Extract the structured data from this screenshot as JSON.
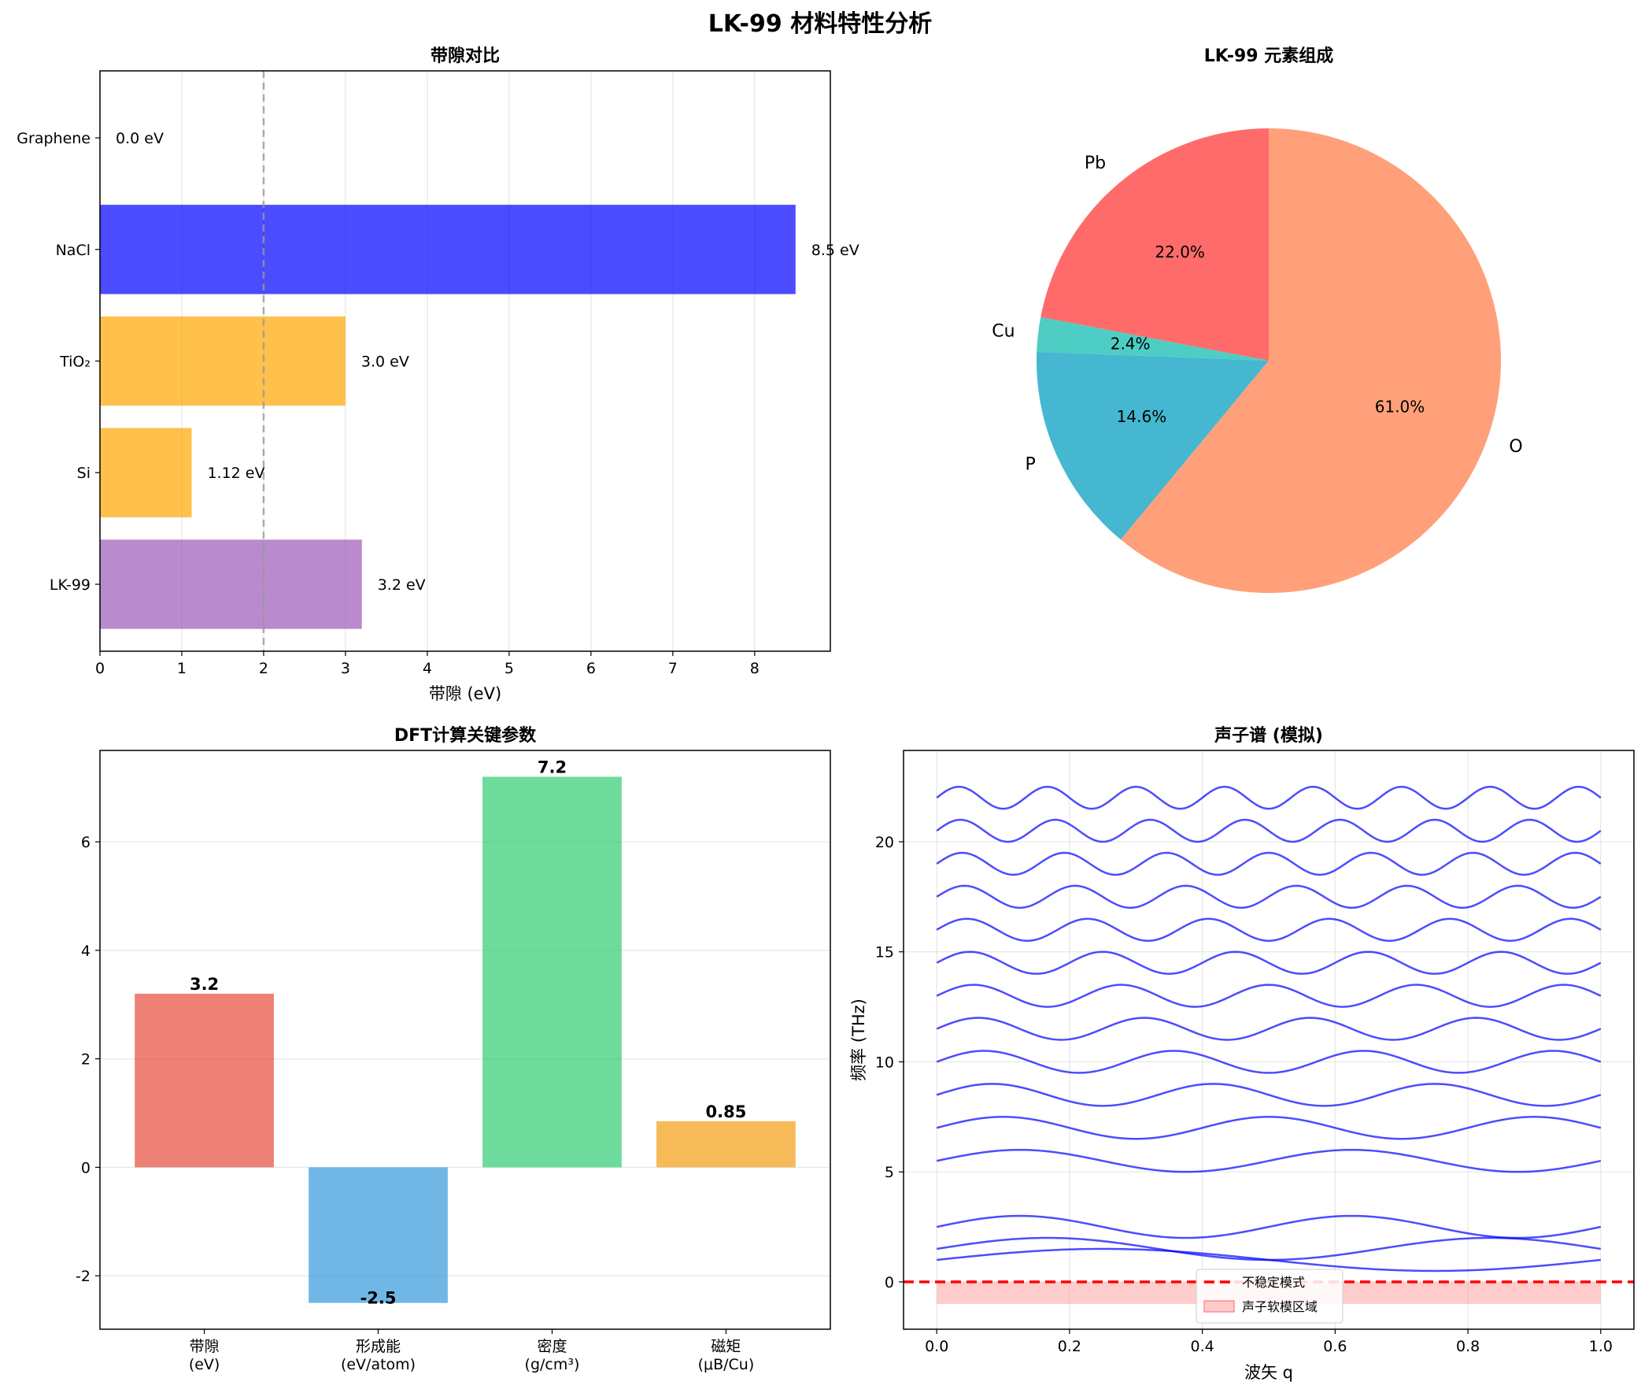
{
  "figure_title": "LK-99 材料特性分析",
  "chart_data": [
    {
      "type": "bar",
      "orientation": "horizontal",
      "title": "带隙对比",
      "xlabel": "带隙 (eV)",
      "ylabel": "",
      "categories": [
        "LK-99",
        "Si",
        "TiO₂",
        "NaCl",
        "Graphene"
      ],
      "values": [
        3.2,
        1.12,
        3.0,
        8.5,
        0.0
      ],
      "value_labels": [
        "3.2 eV",
        "1.12 eV",
        "3.0 eV",
        "8.5 eV",
        "0.0 eV"
      ],
      "colors": [
        "#9b59b6",
        "#ffa500",
        "#ffa500",
        "#0000ff",
        "#1f77b4"
      ],
      "xlim": [
        0,
        8.925
      ],
      "xticks": [
        "0",
        "1",
        "2",
        "3",
        "4",
        "5",
        "6",
        "7",
        "8"
      ],
      "reference_line_x": 2,
      "grid": "x"
    },
    {
      "type": "pie",
      "title": "LK-99 元素组成",
      "labels": [
        "Pb",
        "Cu",
        "P",
        "O"
      ],
      "values": [
        22.0,
        2.4,
        14.6,
        61.0
      ],
      "pct_labels": [
        "22.0%",
        "2.4%",
        "14.6%",
        "61.0%"
      ],
      "colors": [
        "#ff6b6b",
        "#4ecdc4",
        "#45b7d1",
        "#ffa07a"
      ],
      "start_angle_deg": 90,
      "direction": "counterclockwise"
    },
    {
      "type": "bar",
      "title": "DFT计算关键参数",
      "xlabel": "",
      "ylabel": "",
      "categories": [
        "带隙\n(eV)",
        "形成能\n(eV/atom)",
        "密度\n(g/cm³)",
        "磁矩\n(μB/Cu)"
      ],
      "values": [
        3.2,
        -2.5,
        7.2,
        0.85
      ],
      "value_labels": [
        "3.2",
        "-2.5",
        "7.2",
        "0.85"
      ],
      "colors": [
        "#e74c3c",
        "#3498db",
        "#2ecc71",
        "#f39c12"
      ],
      "ylim": [
        -2.985,
        7.685
      ],
      "yticks": [
        "-2",
        "0",
        "2",
        "4",
        "6"
      ],
      "grid": "y"
    },
    {
      "type": "line",
      "title": "声子谱 (模拟)",
      "xlabel": "波矢 q",
      "ylabel": "频率 (THz)",
      "xlim": [
        -0.05,
        1.05
      ],
      "ylim": [
        -2.15,
        24.15
      ],
      "xticks": [
        "0.0",
        "0.2",
        "0.4",
        "0.6",
        "0.8",
        "1.0"
      ],
      "yticks": [
        "0",
        "5",
        "10",
        "15",
        "20"
      ],
      "series_color": "#0000ff",
      "acoustic_modes": [
        {
          "base": 1.0,
          "amplitude": 0.5,
          "cycles": 1
        },
        {
          "base": 1.5,
          "amplitude": 0.5,
          "cycles": 1.5
        },
        {
          "base": 2.5,
          "amplitude": 0.5,
          "cycles": 2
        }
      ],
      "optical_modes": [
        {
          "base": 5.5,
          "amplitude": 0.5,
          "cycles": 2
        },
        {
          "base": 7.0,
          "amplitude": 0.5,
          "cycles": 2.5
        },
        {
          "base": 8.5,
          "amplitude": 0.5,
          "cycles": 3
        },
        {
          "base": 10.0,
          "amplitude": 0.5,
          "cycles": 3.5
        },
        {
          "base": 11.5,
          "amplitude": 0.5,
          "cycles": 4
        },
        {
          "base": 13.0,
          "amplitude": 0.5,
          "cycles": 4.5
        },
        {
          "base": 14.5,
          "amplitude": 0.5,
          "cycles": 5
        },
        {
          "base": 16.0,
          "amplitude": 0.5,
          "cycles": 5.5
        },
        {
          "base": 17.5,
          "amplitude": 0.5,
          "cycles": 6
        },
        {
          "base": 19.0,
          "amplitude": 0.5,
          "cycles": 6.5
        },
        {
          "base": 20.5,
          "amplitude": 0.5,
          "cycles": 7
        },
        {
          "base": 22.0,
          "amplitude": 0.5,
          "cycles": 7.5
        }
      ],
      "unstable_line": {
        "y": 0,
        "color": "#ff0000",
        "label": "不稳定模式"
      },
      "soft_region": {
        "y_min": -1,
        "y_max": 0,
        "x_min": 0,
        "x_max": 1,
        "color": "#ff9999",
        "label": "声子软模区域"
      },
      "legend_position": "lower-center",
      "grid": true
    }
  ]
}
